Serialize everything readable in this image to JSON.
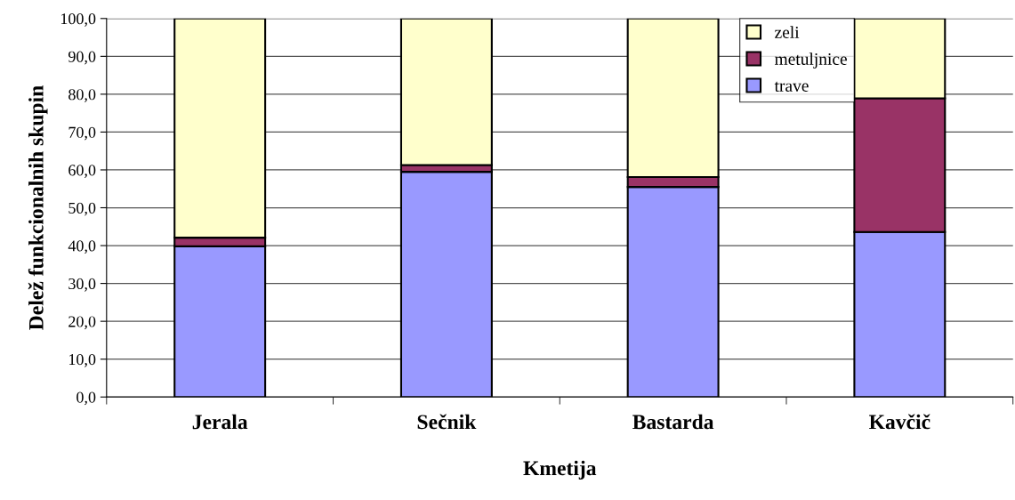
{
  "chart_data": {
    "type": "bar",
    "stacked": true,
    "xlabel": "Kmetija",
    "ylabel": "Delež funkcionalnih skupin",
    "categories": [
      "Jerala",
      "Sečnik",
      "Bastarda",
      "Kavčič"
    ],
    "series": [
      {
        "name": "trave",
        "color": "#9999ff",
        "values": [
          39.8,
          59.5,
          55.5,
          43.6
        ]
      },
      {
        "name": "metuljnice",
        "color": "#993366",
        "values": [
          2.3,
          1.8,
          2.6,
          35.3
        ]
      },
      {
        "name": "zeli",
        "color": "#ffffcc",
        "values": [
          57.9,
          38.7,
          41.9,
          21.1
        ]
      }
    ],
    "ylim": [
      0,
      100
    ],
    "yticks": [
      {
        "value": 0,
        "label": "0,0"
      },
      {
        "value": 10,
        "label": "10,0"
      },
      {
        "value": 20,
        "label": "20,0"
      },
      {
        "value": 30,
        "label": "30,0"
      },
      {
        "value": 40,
        "label": "40,0"
      },
      {
        "value": 50,
        "label": "50,0"
      },
      {
        "value": 60,
        "label": "60,0"
      },
      {
        "value": 70,
        "label": "70,0"
      },
      {
        "value": 80,
        "label": "80,0"
      },
      {
        "value": 90,
        "label": "90,0"
      },
      {
        "value": 100,
        "label": "100,0"
      }
    ],
    "grid": "y",
    "legend": "top right"
  }
}
